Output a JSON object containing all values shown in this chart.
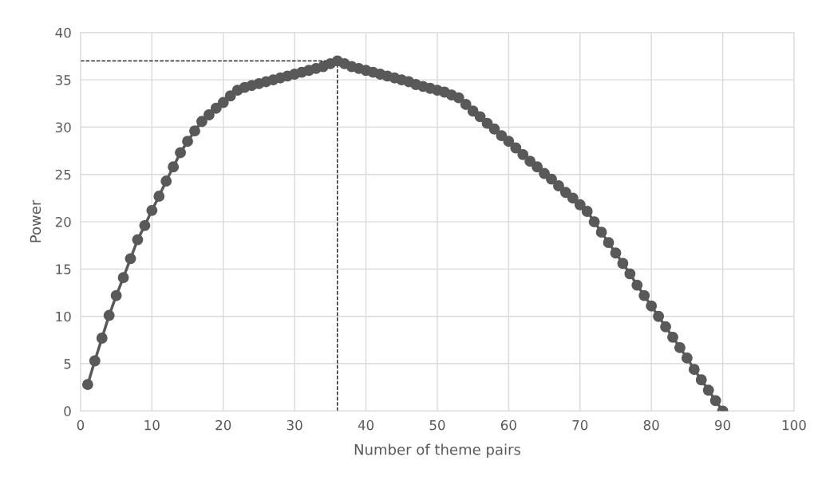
{
  "chart_data": {
    "type": "line",
    "xlabel": "Number of theme pairs",
    "ylabel": "Power",
    "x": [
      1,
      2,
      3,
      4,
      5,
      6,
      7,
      8,
      9,
      10,
      11,
      12,
      13,
      14,
      15,
      16,
      17,
      18,
      19,
      20,
      21,
      22,
      23,
      24,
      25,
      26,
      27,
      28,
      29,
      30,
      31,
      32,
      33,
      34,
      35,
      36,
      37,
      38,
      39,
      40,
      41,
      42,
      43,
      44,
      45,
      46,
      47,
      48,
      49,
      50,
      51,
      52,
      53,
      54,
      55,
      56,
      57,
      58,
      59,
      60,
      61,
      62,
      63,
      64,
      65,
      66,
      67,
      68,
      69,
      70,
      71,
      72,
      73,
      74,
      75,
      76,
      77,
      78,
      79,
      80,
      81,
      82,
      83,
      84,
      85,
      86,
      87,
      88,
      89,
      90
    ],
    "series": [
      {
        "color": "#595959",
        "values": [
          2.8,
          5.3,
          7.7,
          10.1,
          12.2,
          14.1,
          16.1,
          18.1,
          19.6,
          21.2,
          22.7,
          24.3,
          25.8,
          27.3,
          28.5,
          29.6,
          30.6,
          31.3,
          32.0,
          32.6,
          33.3,
          33.9,
          34.2,
          34.4,
          34.6,
          34.8,
          35.0,
          35.2,
          35.4,
          35.6,
          35.8,
          36.0,
          36.2,
          36.4,
          36.7,
          37.0,
          36.7,
          36.4,
          36.2,
          36.0,
          35.8,
          35.6,
          35.4,
          35.2,
          35.0,
          34.8,
          34.5,
          34.3,
          34.1,
          33.9,
          33.7,
          33.4,
          33.1,
          32.4,
          31.7,
          31.1,
          30.4,
          29.8,
          29.1,
          28.5,
          27.8,
          27.1,
          26.4,
          25.8,
          25.1,
          24.5,
          23.8,
          23.1,
          22.5,
          21.8,
          21.1,
          20.0,
          18.9,
          17.8,
          16.7,
          15.6,
          14.5,
          13.3,
          12.2,
          11.1,
          10.0,
          8.9,
          7.8,
          6.7,
          5.6,
          4.4,
          3.3,
          2.2,
          1.1,
          0.0
        ]
      }
    ],
    "marker": "circle",
    "line_style": "solid",
    "xlim": [
      0,
      100
    ],
    "xticks": [
      0,
      10,
      20,
      30,
      40,
      50,
      60,
      70,
      80,
      90,
      100
    ],
    "ylim": [
      0,
      40
    ],
    "yticks": [
      0,
      5,
      10,
      15,
      20,
      25,
      30,
      35,
      40
    ],
    "grid": true,
    "ref_lines": [
      {
        "axis": "x",
        "value": 36,
        "color": "#000000",
        "line_style": "dashed"
      },
      {
        "axis": "y",
        "value": 37,
        "color": "#000000",
        "line_style": "dashed"
      }
    ]
  }
}
